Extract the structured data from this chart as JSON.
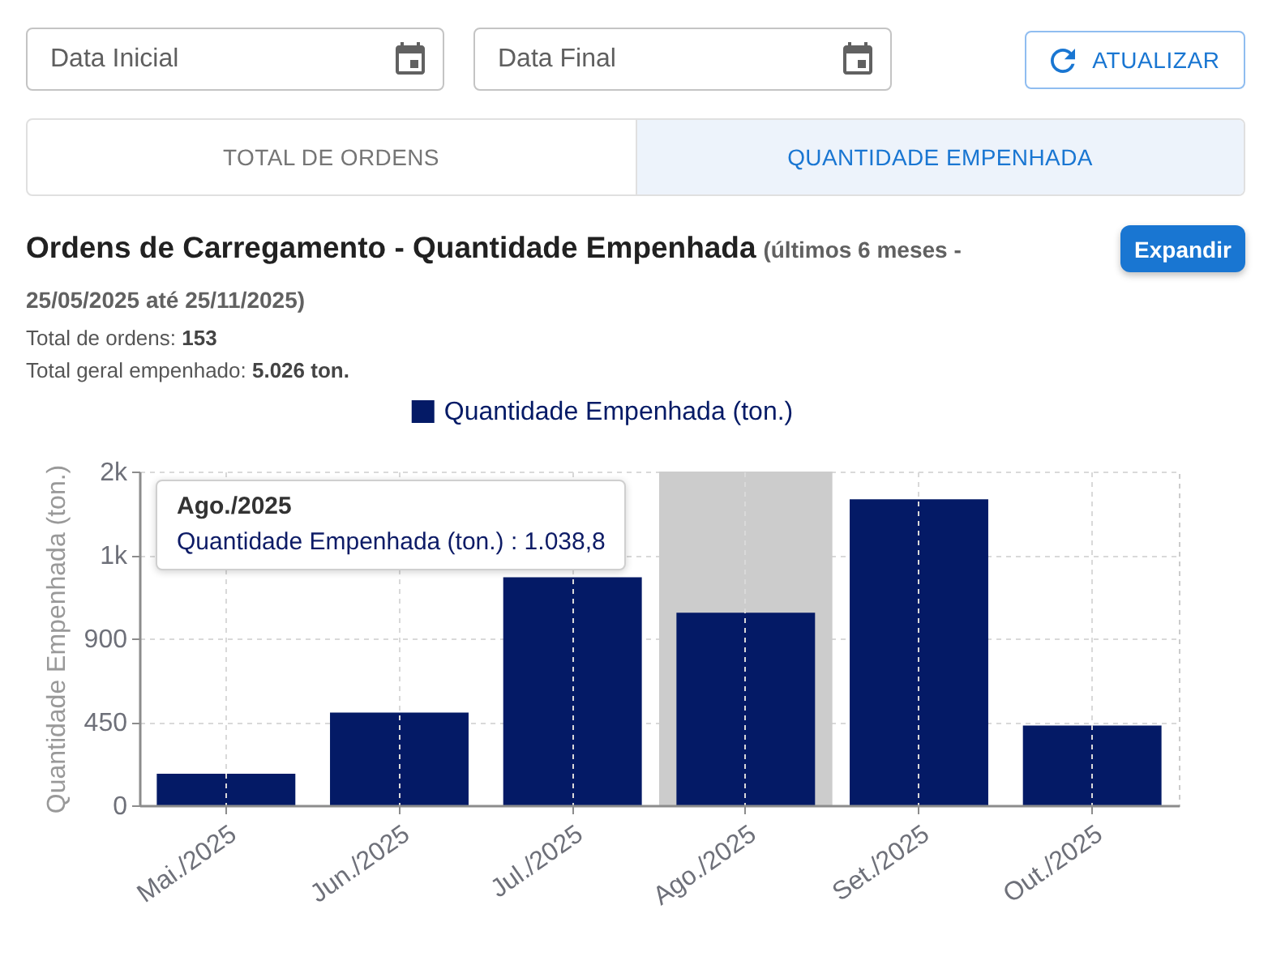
{
  "chart_data": {
    "type": "bar",
    "title": "Ordens de Carregamento - Quantidade Empenhada",
    "subtitle": "(últimos 6 meses - 25/05/2025 até 25/11/2025)",
    "ylabel": "Quantidade Empenhada (ton.)",
    "categories": [
      "Mai./2025",
      "Jun./2025",
      "Jul./2025",
      "Ago./2025",
      "Set./2025",
      "Out./2025"
    ],
    "series": [
      {
        "name": "Quantidade Empenhada (ton.)",
        "color": "#041a66",
        "values": [
          170,
          500,
          1230,
          1038.8,
          1650,
          430
        ]
      }
    ],
    "ylim": [
      0,
      1800
    ],
    "yticks": [
      0,
      450,
      900,
      {
        "value": 1350,
        "label": "1k"
      },
      {
        "value": 1800,
        "label": "2k"
      }
    ],
    "grid": true,
    "legend": "top",
    "bands": [
      {
        "axis": "x",
        "from": "Ago./2025",
        "to": "Ago./2025",
        "color": "#cccccc"
      }
    ],
    "annotations": [
      "Data Inicial",
      "Data Final",
      "ATUALIZAR",
      "TOTAL DE ORDENS",
      "QUANTIDADE EMPENHADA",
      "Expandir",
      "Total de ordens: 153",
      "Total geral empenhado: 5.026 ton.",
      "Ago./2025",
      "Quantidade Empenhada (ton.) : 1.038,8"
    ]
  }
}
